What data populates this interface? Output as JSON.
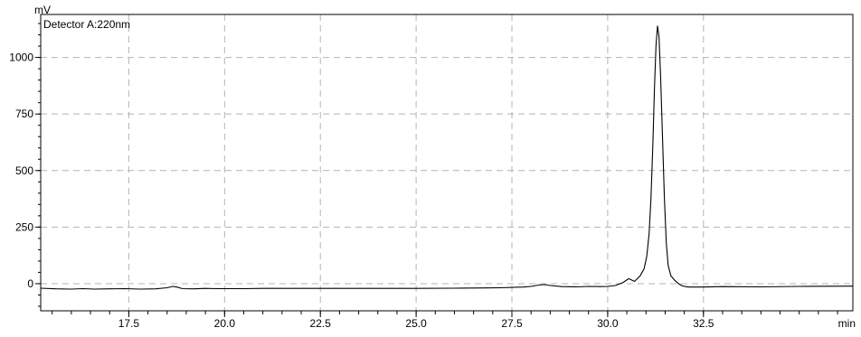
{
  "chart_data": {
    "type": "line",
    "title": "Detector A:220nm",
    "xlabel": "min",
    "ylabel": "mV",
    "xlim": [
      15.2,
      36.4
    ],
    "ylim": [
      -120,
      1190
    ],
    "grid": true,
    "x_ticks": [
      17.5,
      20.0,
      22.5,
      25.0,
      27.5,
      30.0,
      32.5
    ],
    "x_tick_labels": [
      "17.5",
      "20.0",
      "22.5",
      "25.0",
      "27.5",
      "30.0",
      "32.5"
    ],
    "y_ticks": [
      0,
      250,
      500,
      750,
      1000
    ],
    "y_tick_labels": [
      "0",
      "250",
      "500",
      "750",
      "1000"
    ],
    "series": [
      {
        "points": [
          [
            15.2,
            -20
          ],
          [
            15.6,
            -23
          ],
          [
            16.0,
            -24
          ],
          [
            16.3,
            -22
          ],
          [
            16.6,
            -24
          ],
          [
            17.0,
            -23
          ],
          [
            17.4,
            -22
          ],
          [
            17.8,
            -24
          ],
          [
            18.2,
            -23
          ],
          [
            18.5,
            -18
          ],
          [
            18.65,
            -12
          ],
          [
            18.75,
            -15
          ],
          [
            18.9,
            -22
          ],
          [
            19.2,
            -23
          ],
          [
            19.5,
            -21
          ],
          [
            19.8,
            -22
          ],
          [
            20.5,
            -22
          ],
          [
            21.0,
            -21
          ],
          [
            22.0,
            -21
          ],
          [
            23.0,
            -21
          ],
          [
            24.0,
            -21
          ],
          [
            25.0,
            -21
          ],
          [
            26.0,
            -20
          ],
          [
            26.8,
            -19
          ],
          [
            27.2,
            -18
          ],
          [
            27.8,
            -15
          ],
          [
            28.0,
            -12
          ],
          [
            28.2,
            -6
          ],
          [
            28.35,
            -4
          ],
          [
            28.5,
            -8
          ],
          [
            28.8,
            -13
          ],
          [
            29.2,
            -14
          ],
          [
            29.5,
            -12
          ],
          [
            29.8,
            -13
          ],
          [
            30.0,
            -12
          ],
          [
            30.2,
            -8
          ],
          [
            30.4,
            5
          ],
          [
            30.55,
            22
          ],
          [
            30.7,
            10
          ],
          [
            30.85,
            35
          ],
          [
            30.95,
            65
          ],
          [
            31.02,
            120
          ],
          [
            31.08,
            220
          ],
          [
            31.13,
            380
          ],
          [
            31.18,
            620
          ],
          [
            31.22,
            860
          ],
          [
            31.26,
            1050
          ],
          [
            31.3,
            1140
          ],
          [
            31.34,
            1090
          ],
          [
            31.38,
            920
          ],
          [
            31.43,
            650
          ],
          [
            31.48,
            380
          ],
          [
            31.53,
            180
          ],
          [
            31.58,
            80
          ],
          [
            31.65,
            35
          ],
          [
            31.75,
            15
          ],
          [
            31.85,
            0
          ],
          [
            31.95,
            -10
          ],
          [
            32.1,
            -15
          ],
          [
            32.5,
            -15
          ],
          [
            33.0,
            -13
          ],
          [
            34.0,
            -14
          ],
          [
            35.0,
            -12
          ],
          [
            36.4,
            -11
          ]
        ]
      }
    ]
  }
}
